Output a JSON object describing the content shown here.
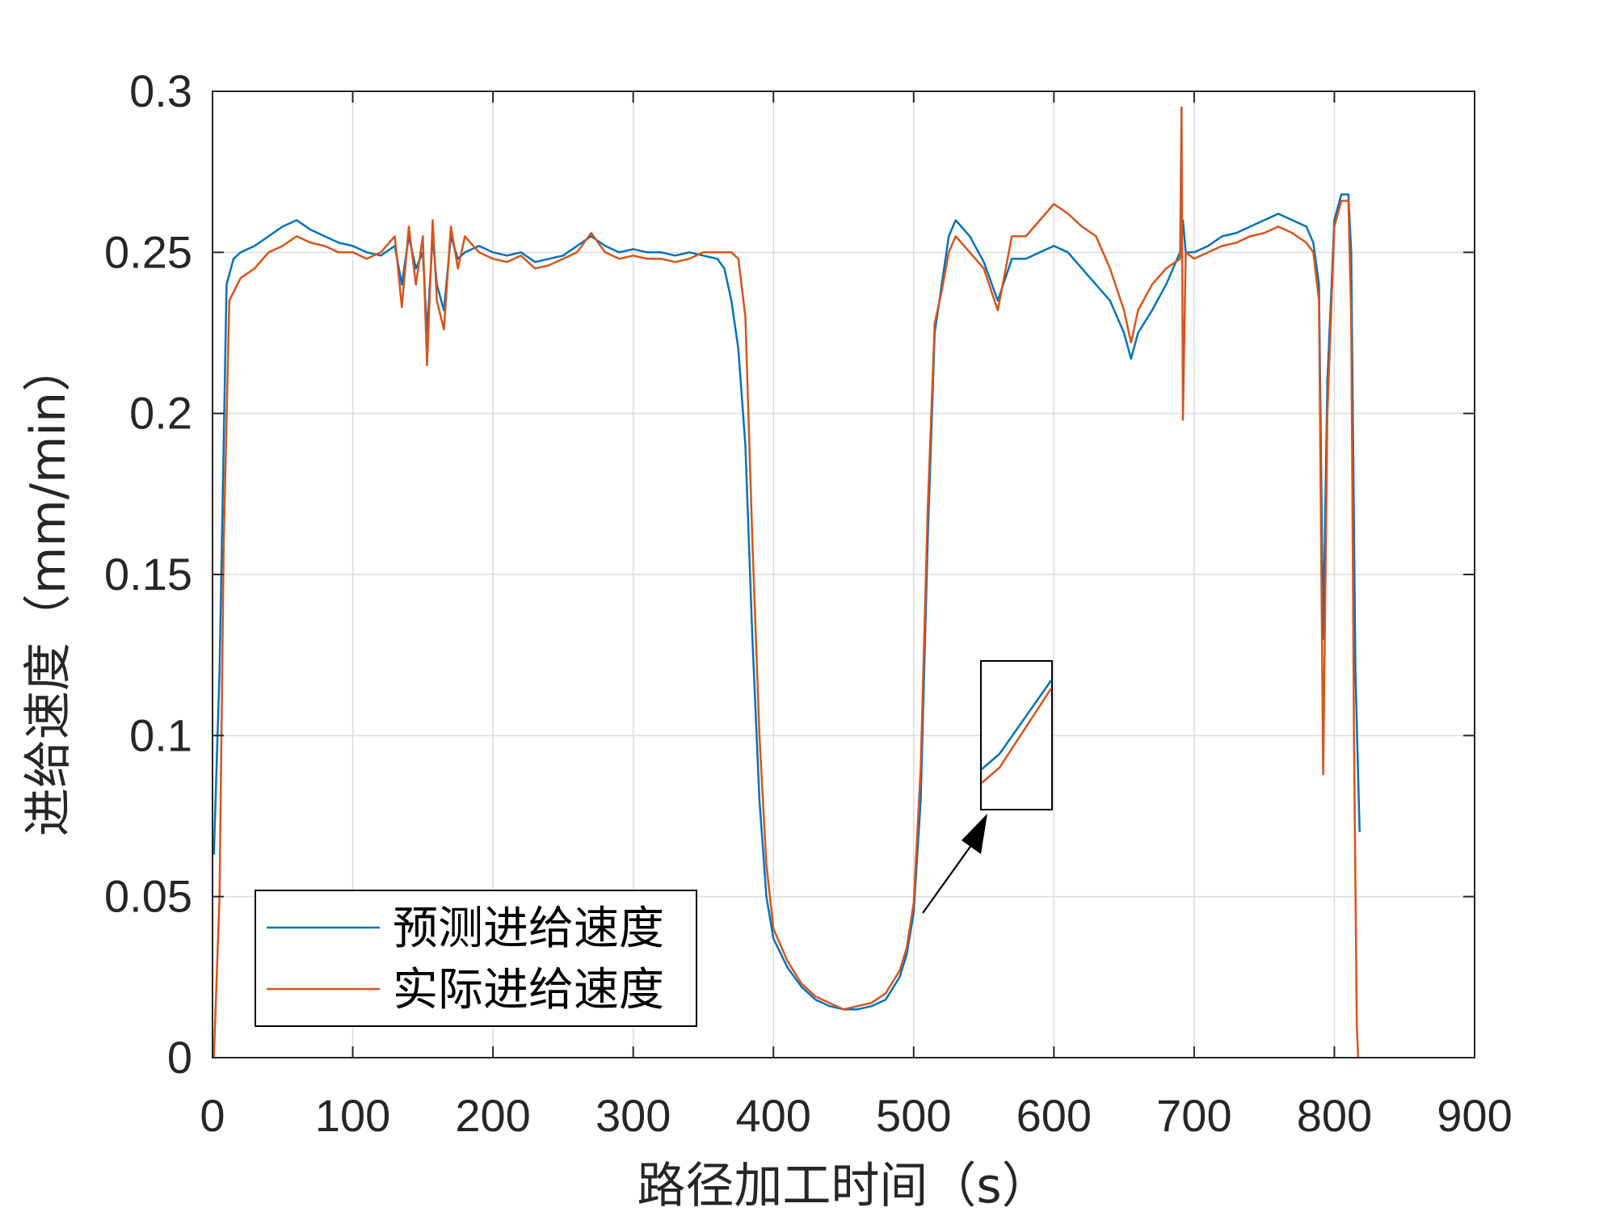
{
  "chart_data": {
    "type": "line",
    "xlabel": "路径加工时间（s）",
    "ylabel": "进给速度（mm/min）",
    "xlim": [
      0,
      900
    ],
    "ylim": [
      0,
      0.3
    ],
    "x_ticks": [
      "0",
      "100",
      "200",
      "300",
      "400",
      "500",
      "600",
      "700",
      "800",
      "900"
    ],
    "y_ticks": [
      "0",
      "0.05",
      "0.1",
      "0.15",
      "0.2",
      "0.25",
      "0.3"
    ],
    "grid": true,
    "legend_position": "bottom-left",
    "colors": {
      "predicted": "#0072BD",
      "actual": "#D95319"
    },
    "series": [
      {
        "name": "预测进给速度",
        "color": "#0072BD",
        "points": [
          [
            1,
            0.063
          ],
          [
            5,
            0.12
          ],
          [
            10,
            0.24
          ],
          [
            15,
            0.248
          ],
          [
            20,
            0.25
          ],
          [
            30,
            0.252
          ],
          [
            40,
            0.255
          ],
          [
            50,
            0.258
          ],
          [
            60,
            0.26
          ],
          [
            70,
            0.257
          ],
          [
            80,
            0.255
          ],
          [
            90,
            0.253
          ],
          [
            100,
            0.252
          ],
          [
            110,
            0.25
          ],
          [
            120,
            0.249
          ],
          [
            130,
            0.252
          ],
          [
            135,
            0.24
          ],
          [
            140,
            0.255
          ],
          [
            145,
            0.245
          ],
          [
            150,
            0.25
          ],
          [
            153,
            0.225
          ],
          [
            157,
            0.255
          ],
          [
            160,
            0.24
          ],
          [
            165,
            0.232
          ],
          [
            170,
            0.255
          ],
          [
            175,
            0.248
          ],
          [
            180,
            0.25
          ],
          [
            190,
            0.252
          ],
          [
            200,
            0.25
          ],
          [
            210,
            0.249
          ],
          [
            220,
            0.25
          ],
          [
            230,
            0.247
          ],
          [
            240,
            0.248
          ],
          [
            250,
            0.249
          ],
          [
            260,
            0.252
          ],
          [
            270,
            0.255
          ],
          [
            280,
            0.252
          ],
          [
            290,
            0.25
          ],
          [
            300,
            0.251
          ],
          [
            310,
            0.25
          ],
          [
            320,
            0.25
          ],
          [
            330,
            0.249
          ],
          [
            340,
            0.25
          ],
          [
            350,
            0.249
          ],
          [
            360,
            0.248
          ],
          [
            365,
            0.245
          ],
          [
            370,
            0.235
          ],
          [
            375,
            0.22
          ],
          [
            380,
            0.19
          ],
          [
            385,
            0.13
          ],
          [
            390,
            0.08
          ],
          [
            395,
            0.05
          ],
          [
            400,
            0.037
          ],
          [
            410,
            0.028
          ],
          [
            420,
            0.022
          ],
          [
            430,
            0.018
          ],
          [
            440,
            0.016
          ],
          [
            450,
            0.015
          ],
          [
            460,
            0.015
          ],
          [
            470,
            0.016
          ],
          [
            480,
            0.018
          ],
          [
            490,
            0.025
          ],
          [
            495,
            0.032
          ],
          [
            500,
            0.045
          ],
          [
            505,
            0.08
          ],
          [
            510,
            0.16
          ],
          [
            515,
            0.225
          ],
          [
            520,
            0.24
          ],
          [
            525,
            0.255
          ],
          [
            530,
            0.26
          ],
          [
            540,
            0.255
          ],
          [
            550,
            0.247
          ],
          [
            560,
            0.235
          ],
          [
            570,
            0.248
          ],
          [
            580,
            0.248
          ],
          [
            590,
            0.25
          ],
          [
            600,
            0.252
          ],
          [
            610,
            0.25
          ],
          [
            620,
            0.245
          ],
          [
            630,
            0.24
          ],
          [
            640,
            0.235
          ],
          [
            650,
            0.225
          ],
          [
            655,
            0.217
          ],
          [
            660,
            0.225
          ],
          [
            670,
            0.232
          ],
          [
            680,
            0.24
          ],
          [
            690,
            0.25
          ],
          [
            692,
            0.26
          ],
          [
            694,
            0.25
          ],
          [
            700,
            0.25
          ],
          [
            710,
            0.252
          ],
          [
            720,
            0.255
          ],
          [
            730,
            0.256
          ],
          [
            740,
            0.258
          ],
          [
            750,
            0.26
          ],
          [
            760,
            0.262
          ],
          [
            770,
            0.26
          ],
          [
            780,
            0.258
          ],
          [
            785,
            0.253
          ],
          [
            789,
            0.24
          ],
          [
            792,
            0.13
          ],
          [
            795,
            0.21
          ],
          [
            800,
            0.26
          ],
          [
            805,
            0.268
          ],
          [
            810,
            0.268
          ],
          [
            812,
            0.25
          ],
          [
            815,
            0.12
          ],
          [
            818,
            0.07
          ]
        ]
      },
      {
        "name": "实际进给速度",
        "color": "#D95319",
        "points": [
          [
            1,
            0.0
          ],
          [
            5,
            0.05
          ],
          [
            8,
            0.16
          ],
          [
            12,
            0.235
          ],
          [
            20,
            0.242
          ],
          [
            30,
            0.245
          ],
          [
            40,
            0.25
          ],
          [
            50,
            0.252
          ],
          [
            60,
            0.255
          ],
          [
            70,
            0.253
          ],
          [
            80,
            0.252
          ],
          [
            90,
            0.25
          ],
          [
            100,
            0.25
          ],
          [
            110,
            0.248
          ],
          [
            120,
            0.25
          ],
          [
            130,
            0.255
          ],
          [
            135,
            0.233
          ],
          [
            140,
            0.258
          ],
          [
            145,
            0.24
          ],
          [
            150,
            0.255
          ],
          [
            153,
            0.215
          ],
          [
            157,
            0.26
          ],
          [
            160,
            0.235
          ],
          [
            165,
            0.226
          ],
          [
            170,
            0.258
          ],
          [
            175,
            0.245
          ],
          [
            180,
            0.255
          ],
          [
            190,
            0.25
          ],
          [
            200,
            0.248
          ],
          [
            210,
            0.247
          ],
          [
            220,
            0.249
          ],
          [
            230,
            0.245
          ],
          [
            240,
            0.246
          ],
          [
            250,
            0.248
          ],
          [
            260,
            0.25
          ],
          [
            270,
            0.256
          ],
          [
            280,
            0.25
          ],
          [
            290,
            0.248
          ],
          [
            300,
            0.249
          ],
          [
            310,
            0.248
          ],
          [
            320,
            0.248
          ],
          [
            330,
            0.247
          ],
          [
            340,
            0.248
          ],
          [
            350,
            0.25
          ],
          [
            360,
            0.25
          ],
          [
            370,
            0.25
          ],
          [
            375,
            0.248
          ],
          [
            380,
            0.23
          ],
          [
            385,
            0.16
          ],
          [
            390,
            0.1
          ],
          [
            395,
            0.06
          ],
          [
            400,
            0.04
          ],
          [
            410,
            0.03
          ],
          [
            420,
            0.023
          ],
          [
            430,
            0.019
          ],
          [
            440,
            0.017
          ],
          [
            450,
            0.015
          ],
          [
            460,
            0.016
          ],
          [
            470,
            0.017
          ],
          [
            480,
            0.02
          ],
          [
            490,
            0.027
          ],
          [
            495,
            0.034
          ],
          [
            500,
            0.048
          ],
          [
            505,
            0.09
          ],
          [
            510,
            0.17
          ],
          [
            515,
            0.228
          ],
          [
            520,
            0.238
          ],
          [
            525,
            0.25
          ],
          [
            530,
            0.255
          ],
          [
            540,
            0.25
          ],
          [
            550,
            0.245
          ],
          [
            560,
            0.232
          ],
          [
            570,
            0.255
          ],
          [
            580,
            0.255
          ],
          [
            590,
            0.26
          ],
          [
            600,
            0.265
          ],
          [
            610,
            0.262
          ],
          [
            620,
            0.258
          ],
          [
            630,
            0.255
          ],
          [
            640,
            0.245
          ],
          [
            650,
            0.232
          ],
          [
            655,
            0.222
          ],
          [
            660,
            0.232
          ],
          [
            670,
            0.24
          ],
          [
            680,
            0.245
          ],
          [
            690,
            0.248
          ],
          [
            691,
            0.295
          ],
          [
            692,
            0.198
          ],
          [
            694,
            0.25
          ],
          [
            700,
            0.248
          ],
          [
            710,
            0.25
          ],
          [
            720,
            0.252
          ],
          [
            730,
            0.253
          ],
          [
            740,
            0.255
          ],
          [
            750,
            0.256
          ],
          [
            760,
            0.258
          ],
          [
            770,
            0.256
          ],
          [
            780,
            0.253
          ],
          [
            785,
            0.25
          ],
          [
            789,
            0.235
          ],
          [
            792,
            0.088
          ],
          [
            795,
            0.2
          ],
          [
            800,
            0.258
          ],
          [
            805,
            0.266
          ],
          [
            810,
            0.266
          ],
          [
            812,
            0.23
          ],
          [
            814,
            0.1
          ],
          [
            816,
            0.01
          ],
          [
            817,
            0.0
          ]
        ]
      }
    ]
  }
}
